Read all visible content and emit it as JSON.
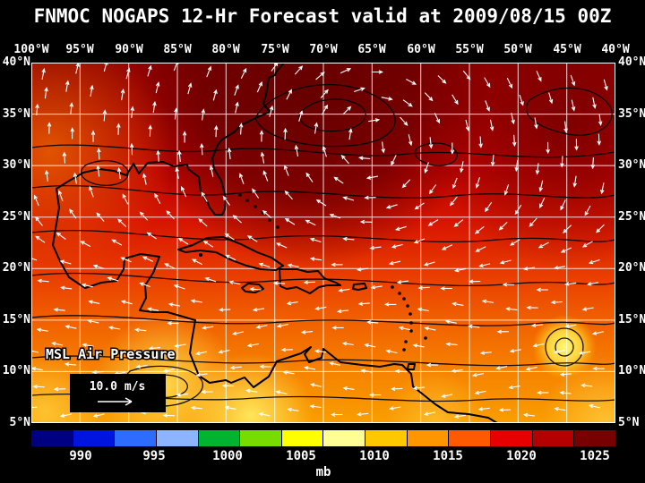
{
  "header": {
    "title": "FNMOC NOGAPS 12-Hr Forecast valid at 2009/08/15 00Z"
  },
  "map": {
    "field_label": "MSL Air Pressure",
    "wind_scale_label": "10.0 m/s",
    "lon_ticks": [
      "100°W",
      "95°W",
      "90°W",
      "85°W",
      "80°W",
      "75°W",
      "70°W",
      "65°W",
      "60°W",
      "55°W",
      "50°W",
      "45°W",
      "40°W"
    ],
    "lat_ticks": [
      "40°N",
      "35°N",
      "30°N",
      "25°N",
      "20°N",
      "15°N",
      "10°N",
      "5°N"
    ]
  },
  "colorbar": {
    "unit_label": "mb",
    "tick_labels": [
      "990",
      "995",
      "1000",
      "1005",
      "1010",
      "1015",
      "1020",
      "1025"
    ],
    "colors": [
      "#000082",
      "#0014e0",
      "#2e6bff",
      "#8cb4ff",
      "#00b432",
      "#78dc00",
      "#ffff00",
      "#ffff96",
      "#ffc800",
      "#ff9600",
      "#ff5a00",
      "#e60000",
      "#b40000",
      "#780000"
    ]
  },
  "chart_data": {
    "type": "heatmap",
    "subtype": "filled contour pressure map with wind vector overlay on geographic basemap",
    "source_model": "FNMOC NOGAPS",
    "forecast_hour": 12,
    "valid_time": "2009/08/15 00Z",
    "field": "MSL Air Pressure",
    "units": "mb",
    "x_axis": {
      "label": "longitude",
      "ticks": [
        "100°W",
        "95°W",
        "90°W",
        "85°W",
        "80°W",
        "75°W",
        "70°W",
        "65°W",
        "60°W",
        "55°W",
        "50°W",
        "45°W",
        "40°W"
      ],
      "grid_interval_deg": 5
    },
    "y_axis": {
      "label": "latitude",
      "ticks": [
        "40°N",
        "35°N",
        "30°N",
        "25°N",
        "20°N",
        "15°N",
        "10°N",
        "5°N"
      ],
      "grid_interval_deg": 5
    },
    "colorbar": {
      "levels_mb": [
        990,
        995,
        1000,
        1005,
        1010,
        1015,
        1020,
        1025
      ],
      "position": "bottom",
      "unit": "mb"
    },
    "wind_reference_vector": "10.0 m/s",
    "visible_pattern": "High pressure (~1020-1026 mb, dark red) dominates the subtropical North Atlantic north of ~25°N; pressure decreases southward to ~1008-1012 mb (orange/yellow) over the Caribbean and Central America; small closed circulation with yellow core near 47°W 12°N; trade-wind easterlies south of ~20°N and clockwise flow around the Atlantic high."
  }
}
